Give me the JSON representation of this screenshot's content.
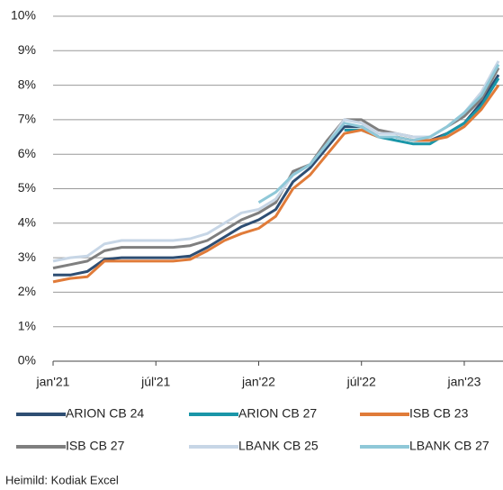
{
  "chart_data": {
    "type": "line",
    "categories": [
      "jan'21",
      null,
      null,
      null,
      null,
      null,
      "júl'21",
      null,
      null,
      null,
      null,
      null,
      "jan'22",
      null,
      null,
      null,
      null,
      null,
      "júl'22",
      null,
      null,
      null,
      null,
      null,
      "jan'23",
      null,
      null
    ],
    "series": [
      {
        "name": "ARION CB 24",
        "color": "#2e4e73",
        "values": [
          2.5,
          2.5,
          2.6,
          2.95,
          3.0,
          3.0,
          3.0,
          3.0,
          3.05,
          3.3,
          3.6,
          3.9,
          4.1,
          4.4,
          5.2,
          5.6,
          6.2,
          6.8,
          6.8,
          6.5,
          6.5,
          6.4,
          6.4,
          6.6,
          6.9,
          7.5,
          8.3
        ]
      },
      {
        "name": "ARION CB 27",
        "color": "#1a96a8",
        "values": [
          null,
          null,
          null,
          null,
          null,
          null,
          null,
          null,
          null,
          null,
          null,
          null,
          null,
          null,
          null,
          null,
          null,
          6.7,
          6.7,
          6.5,
          6.4,
          6.3,
          6.3,
          6.6,
          6.9,
          7.4,
          8.2
        ]
      },
      {
        "name": "ISB CB 23",
        "color": "#e07b39",
        "values": [
          2.3,
          2.4,
          2.45,
          2.9,
          2.9,
          2.9,
          2.9,
          2.9,
          2.95,
          3.2,
          3.5,
          3.7,
          3.85,
          4.2,
          5.0,
          5.4,
          6.0,
          6.6,
          6.7,
          6.5,
          6.5,
          6.4,
          6.4,
          6.5,
          6.8,
          7.3,
          8.0
        ]
      },
      {
        "name": "ISB CB 27",
        "color": "#7f7f7f",
        "values": [
          2.7,
          2.8,
          2.9,
          3.2,
          3.3,
          3.3,
          3.3,
          3.3,
          3.35,
          3.5,
          3.8,
          4.1,
          4.3,
          4.6,
          5.5,
          5.7,
          6.4,
          7.0,
          7.0,
          6.7,
          6.6,
          6.5,
          6.5,
          6.8,
          7.1,
          7.6,
          8.5
        ]
      },
      {
        "name": "LBANK CB 25",
        "color": "#c7d6e6",
        "values": [
          2.9,
          3.0,
          3.05,
          3.4,
          3.5,
          3.5,
          3.5,
          3.5,
          3.55,
          3.7,
          4.0,
          4.3,
          4.4,
          4.7,
          5.4,
          5.7,
          6.3,
          7.0,
          6.9,
          6.6,
          6.6,
          6.5,
          6.5,
          6.8,
          7.2,
          7.8,
          8.7
        ]
      },
      {
        "name": "LBANK CB 27",
        "color": "#8fc8d8",
        "values": [
          null,
          null,
          null,
          null,
          null,
          null,
          null,
          null,
          null,
          null,
          null,
          null,
          4.6,
          4.9,
          5.4,
          5.7,
          6.3,
          6.9,
          6.8,
          6.5,
          6.5,
          6.4,
          6.5,
          6.8,
          7.2,
          7.7,
          8.6
        ]
      }
    ],
    "ylim": [
      0,
      10
    ],
    "yticks": [
      {
        "value": 0,
        "label": "0%"
      },
      {
        "value": 1,
        "label": "1%"
      },
      {
        "value": 2,
        "label": "2%"
      },
      {
        "value": 3,
        "label": "3%"
      },
      {
        "value": 4,
        "label": "4%"
      },
      {
        "value": 5,
        "label": "5%"
      },
      {
        "value": 6,
        "label": "6%"
      },
      {
        "value": 7,
        "label": "7%"
      },
      {
        "value": 8,
        "label": "8%"
      },
      {
        "value": 9,
        "label": "9%"
      },
      {
        "value": 10,
        "label": "10%"
      }
    ],
    "grid": true,
    "source": "Heimild:  Kodiak Excel"
  }
}
